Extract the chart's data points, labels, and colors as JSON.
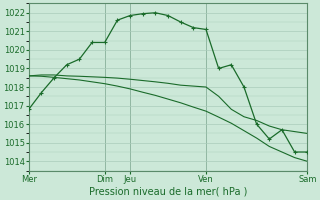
{
  "background_color": "#cce8d8",
  "grid_color": "#aaccbb",
  "line_color": "#1a6b2a",
  "spine_color": "#5a8a6a",
  "xlabel": "Pression niveau de la mer( hPa )",
  "ylim": [
    1013.5,
    1022.5
  ],
  "yticks": [
    1014,
    1015,
    1016,
    1017,
    1018,
    1019,
    1020,
    1021,
    1022
  ],
  "xlim": [
    0,
    22
  ],
  "xtick_labels": [
    "Mer",
    "Dim",
    "Jeu",
    "Ven",
    "Sam"
  ],
  "xtick_positions": [
    0,
    6,
    8,
    14,
    22
  ],
  "vlines": [
    0,
    6,
    8,
    14,
    22
  ],
  "line1_x": [
    0,
    1,
    2,
    3,
    4,
    5,
    6,
    7,
    8,
    9,
    10,
    11,
    12,
    13,
    14,
    15,
    16,
    17,
    18,
    19,
    20,
    21,
    22
  ],
  "line1_y": [
    1016.8,
    1017.7,
    1018.5,
    1019.2,
    1019.5,
    1020.4,
    1020.4,
    1021.6,
    1021.85,
    1021.95,
    1022.0,
    1021.85,
    1021.5,
    1021.2,
    1021.1,
    1019.0,
    1019.2,
    1018.0,
    1016.0,
    1015.2,
    1015.7,
    1014.5,
    1014.5
  ],
  "line2_x": [
    0,
    1,
    2,
    3,
    4,
    5,
    6,
    7,
    8,
    9,
    10,
    11,
    12,
    13,
    14,
    15,
    16,
    17,
    18,
    19,
    20,
    21,
    22
  ],
  "line2_y": [
    1018.6,
    1018.65,
    1018.65,
    1018.6,
    1018.58,
    1018.55,
    1018.52,
    1018.48,
    1018.42,
    1018.35,
    1018.28,
    1018.2,
    1018.1,
    1018.05,
    1018.0,
    1017.5,
    1016.8,
    1016.4,
    1016.2,
    1015.9,
    1015.7,
    1015.6,
    1015.5
  ],
  "line3_x": [
    0,
    1,
    2,
    3,
    4,
    5,
    6,
    7,
    8,
    9,
    10,
    11,
    12,
    13,
    14,
    15,
    16,
    17,
    18,
    19,
    20,
    21,
    22
  ],
  "line3_y": [
    1018.6,
    1018.58,
    1018.52,
    1018.45,
    1018.38,
    1018.28,
    1018.18,
    1018.05,
    1017.9,
    1017.72,
    1017.55,
    1017.35,
    1017.15,
    1016.92,
    1016.7,
    1016.38,
    1016.05,
    1015.65,
    1015.25,
    1014.8,
    1014.5,
    1014.2,
    1014.0
  ],
  "ytick_fontsize": 6,
  "xtick_fontsize": 6,
  "xlabel_fontsize": 7
}
